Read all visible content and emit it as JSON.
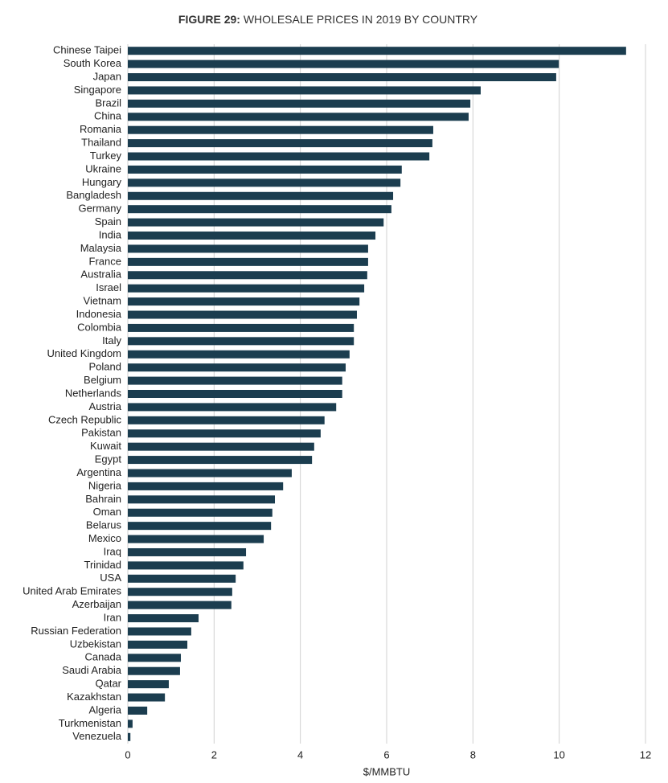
{
  "chart_data": {
    "type": "barh",
    "title_label": "FIGURE 29:",
    "title": "WHOLESALE PRICES IN 2019 BY COUNTRY",
    "x_label": "$/MMBTU",
    "color": "#1b3d4f",
    "grid": true,
    "xlim": [
      0,
      12
    ],
    "xticks": [
      0,
      2,
      4,
      6,
      8,
      10,
      12
    ],
    "categories": [
      "Chinese Taipei",
      "South Korea",
      "Japan",
      "Singapore",
      "Brazil",
      "China",
      "Romania",
      "Thailand",
      "Turkey",
      "Ukraine",
      "Hungary",
      "Bangladesh",
      "Germany",
      "Spain",
      "India",
      "Malaysia",
      "France",
      "Australia",
      "Israel",
      "Vietnam",
      "Indonesia",
      "Colombia",
      "Italy",
      "United Kingdom",
      "Poland",
      "Belgium",
      "Netherlands",
      "Austria",
      "Czech Republic",
      "Pakistan",
      "Kuwait",
      "Egypt",
      "Argentina",
      "Nigeria",
      "Bahrain",
      "Oman",
      "Belarus",
      "Mexico",
      "Iraq",
      "Trinidad",
      "USA",
      "United Arab Emirates",
      "Azerbaijan",
      "Iran",
      "Russian Federation",
      "Uzbekistan",
      "Canada",
      "Saudi Arabia",
      "Qatar",
      "Kazakhstan",
      "Algeria",
      "Turkmenistan",
      "Venezuela"
    ],
    "values": [
      11.55,
      9.99,
      9.93,
      8.18,
      7.94,
      7.9,
      7.08,
      7.06,
      6.99,
      6.35,
      6.32,
      6.15,
      6.11,
      5.93,
      5.74,
      5.57,
      5.57,
      5.55,
      5.48,
      5.37,
      5.31,
      5.24,
      5.24,
      5.14,
      5.05,
      4.97,
      4.97,
      4.83,
      4.56,
      4.47,
      4.32,
      4.27,
      3.8,
      3.6,
      3.41,
      3.35,
      3.32,
      3.15,
      2.74,
      2.68,
      2.5,
      2.42,
      2.4,
      1.64,
      1.47,
      1.38,
      1.23,
      1.21,
      0.95,
      0.86,
      0.45,
      0.11,
      0.06
    ]
  }
}
